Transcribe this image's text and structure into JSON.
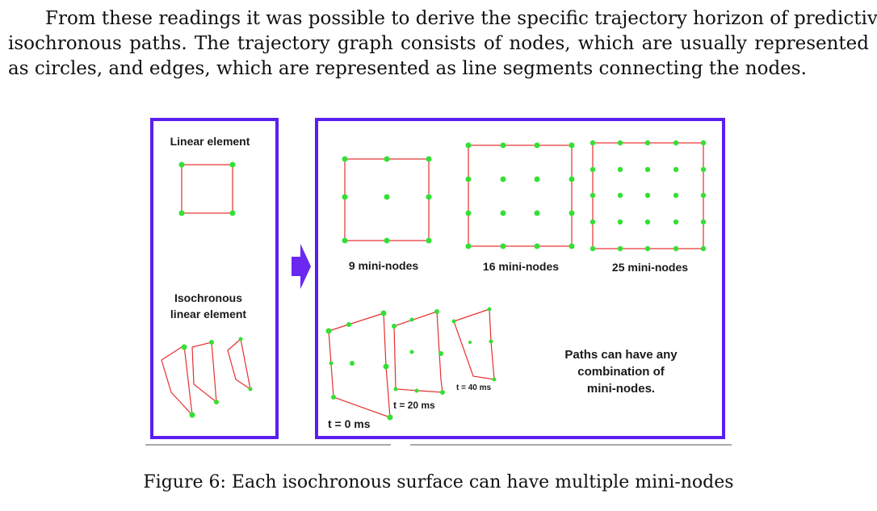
{
  "paragraph": {
    "line1": "From these readings it was possible to derive the specific trajectory horizon of predictive",
    "line2": "isochronous paths.  The trajectory graph consists of nodes, which are usually represented",
    "line3": "as circles, and edges, which are represented as line segments connecting the nodes."
  },
  "figure": {
    "left_panel": {
      "linear_label": "Linear element",
      "iso_label_1": "Isochronous",
      "iso_label_2": "linear element"
    },
    "right_panel": {
      "label_9": "9 mini-nodes",
      "label_16": "16 mini-nodes",
      "label_25": "25 mini-nodes",
      "t0": "t = 0 ms",
      "t20": "t = 20 ms",
      "t40": "t = 40 ms",
      "note_1": "Paths can have any",
      "note_2": "combination of",
      "note_3": "mini-nodes."
    },
    "colors": {
      "frame": "#5a1ef0",
      "edge": "#e53030",
      "node": "#33e033",
      "arrow": "#6a28f0"
    }
  },
  "caption": "Figure 6: Each isochronous surface can have multiple mini-nodes"
}
